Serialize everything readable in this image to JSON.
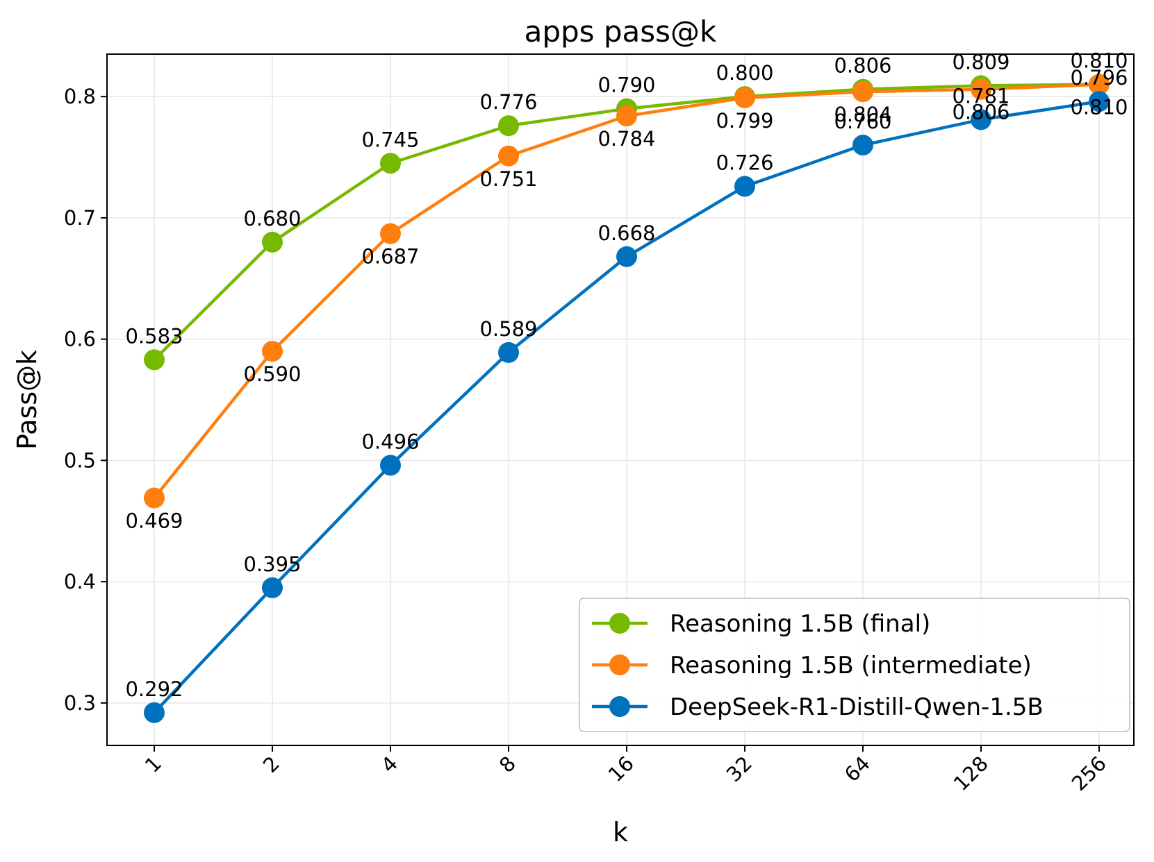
{
  "chart_data": {
    "type": "line",
    "title": "apps pass@k",
    "xlabel": "k",
    "ylabel": "Pass@k",
    "categories": [
      "1",
      "2",
      "4",
      "8",
      "16",
      "32",
      "64",
      "128",
      "256"
    ],
    "ylim": [
      0.265,
      0.835
    ],
    "yticks": [
      0.3,
      0.4,
      0.5,
      0.6,
      0.7,
      0.8
    ],
    "ytick_labels": [
      "0.3",
      "0.4",
      "0.5",
      "0.6",
      "0.7",
      "0.8"
    ],
    "grid": true,
    "legend_position": "lower-right",
    "series": [
      {
        "name": "Reasoning 1.5B (final)",
        "color": "#76b900",
        "values": [
          0.583,
          0.68,
          0.745,
          0.776,
          0.79,
          0.8,
          0.806,
          0.809,
          0.81
        ],
        "labels": [
          "0.583",
          "0.680",
          "0.745",
          "0.776",
          "0.790",
          "0.800",
          "0.806",
          "0.809",
          "0.810"
        ],
        "label_side": "above"
      },
      {
        "name": "Reasoning 1.5B (intermediate)",
        "color": "#ff7f0e",
        "values": [
          0.469,
          0.59,
          0.687,
          0.751,
          0.784,
          0.799,
          0.804,
          0.806,
          0.81
        ],
        "labels": [
          "0.469",
          "0.590",
          "0.687",
          "0.751",
          "0.784",
          "0.799",
          "0.804",
          "0.806",
          "0.810"
        ],
        "label_side": "below"
      },
      {
        "name": "DeepSeek-R1-Distill-Qwen-1.5B",
        "color": "#0072bd",
        "values": [
          0.292,
          0.395,
          0.496,
          0.589,
          0.668,
          0.726,
          0.76,
          0.781,
          0.796
        ],
        "labels": [
          "0.292",
          "0.395",
          "0.496",
          "0.589",
          "0.668",
          "0.726",
          "0.760",
          "0.781",
          "0.796"
        ],
        "label_side": "above"
      }
    ]
  }
}
